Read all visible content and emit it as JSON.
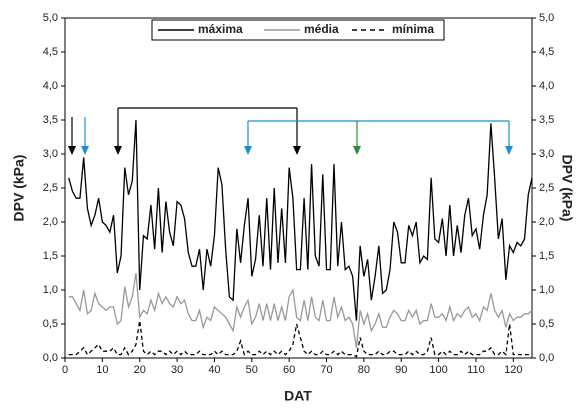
{
  "chart_data": {
    "type": "line",
    "xlabel": "DAT",
    "ylabel": "DPV (kPa)",
    "y2label": "DPV (kPa)",
    "x": [
      1,
      2,
      3,
      4,
      5,
      6,
      7,
      8,
      9,
      10,
      11,
      12,
      13,
      14,
      15,
      16,
      17,
      18,
      19,
      20,
      21,
      22,
      23,
      24,
      25,
      26,
      27,
      28,
      29,
      30,
      31,
      32,
      33,
      34,
      35,
      36,
      37,
      38,
      39,
      40,
      41,
      42,
      43,
      44,
      45,
      46,
      47,
      48,
      49,
      50,
      51,
      52,
      53,
      54,
      55,
      56,
      57,
      58,
      59,
      60,
      61,
      62,
      63,
      64,
      65,
      66,
      67,
      68,
      69,
      70,
      71,
      72,
      73,
      74,
      75,
      76,
      77,
      78,
      79,
      80,
      81,
      82,
      83,
      84,
      85,
      86,
      87,
      88,
      89,
      90,
      91,
      92,
      93,
      94,
      95,
      96,
      97,
      98,
      99,
      100,
      101,
      102,
      103,
      104,
      105,
      106,
      107,
      108,
      109,
      110,
      111,
      112,
      113,
      114,
      115,
      116,
      117,
      118,
      119,
      120,
      121,
      122,
      123,
      124,
      125
    ],
    "series": [
      {
        "name": "máxima",
        "color": "#000000",
        "line_style": "solid",
        "values": [
          2.65,
          2.45,
          2.35,
          2.35,
          2.95,
          2.2,
          1.95,
          2.1,
          2.35,
          2.0,
          1.95,
          1.85,
          2.1,
          1.25,
          1.5,
          2.8,
          2.4,
          2.6,
          3.5,
          1.0,
          1.8,
          1.75,
          2.25,
          1.6,
          2.5,
          1.55,
          2.3,
          1.85,
          1.65,
          2.3,
          2.25,
          2.05,
          1.55,
          1.35,
          1.35,
          1.6,
          1.0,
          1.6,
          1.35,
          1.8,
          2.8,
          2.55,
          1.6,
          0.9,
          0.85,
          1.9,
          1.4,
          1.95,
          2.35,
          1.2,
          1.45,
          2.1,
          1.35,
          2.35,
          1.3,
          2.5,
          1.4,
          2.2,
          1.4,
          2.8,
          2.35,
          1.3,
          1.3,
          2.35,
          1.3,
          2.85,
          1.5,
          1.35,
          2.7,
          1.3,
          1.3,
          2.85,
          1.35,
          2.0,
          1.3,
          1.35,
          1.2,
          0.55,
          1.65,
          1.2,
          1.45,
          0.85,
          1.2,
          1.65,
          0.95,
          1.0,
          1.3,
          2.0,
          1.85,
          1.4,
          1.4,
          1.95,
          1.8,
          2.0,
          1.4,
          1.5,
          1.45,
          2.65,
          1.75,
          1.7,
          2.05,
          1.5,
          2.25,
          1.5,
          1.95,
          1.55,
          2.1,
          2.35,
          1.8,
          1.9,
          1.6,
          2.1,
          2.4,
          3.45,
          2.65,
          1.75,
          2.05,
          1.15,
          1.65,
          1.55,
          1.7,
          1.65,
          1.75,
          2.4,
          2.65
        ]
      },
      {
        "name": "média",
        "color": "#999999",
        "line_style": "solid",
        "values": [
          0.9,
          0.9,
          0.8,
          0.7,
          1.0,
          0.65,
          0.7,
          0.95,
          0.8,
          0.75,
          0.7,
          0.75,
          0.75,
          0.5,
          0.55,
          1.05,
          0.75,
          0.9,
          1.25,
          0.6,
          0.7,
          0.65,
          0.85,
          0.7,
          0.95,
          0.8,
          0.9,
          0.8,
          0.75,
          0.9,
          0.8,
          0.85,
          0.65,
          0.55,
          0.55,
          0.7,
          0.45,
          0.6,
          0.55,
          0.75,
          0.7,
          0.65,
          0.6,
          0.5,
          0.4,
          0.75,
          0.6,
          0.75,
          0.85,
          0.5,
          0.6,
          0.8,
          0.55,
          0.8,
          0.55,
          0.8,
          0.55,
          0.75,
          0.55,
          0.9,
          1.0,
          0.6,
          0.55,
          0.85,
          0.55,
          0.9,
          0.6,
          0.55,
          0.85,
          0.55,
          0.55,
          0.9,
          0.6,
          0.75,
          0.55,
          0.6,
          0.5,
          0.15,
          0.7,
          0.5,
          0.65,
          0.4,
          0.5,
          0.65,
          0.45,
          0.45,
          0.6,
          0.7,
          0.65,
          0.55,
          0.55,
          0.7,
          0.6,
          0.7,
          0.5,
          0.55,
          0.55,
          0.8,
          0.6,
          0.6,
          0.65,
          0.55,
          0.75,
          0.55,
          0.65,
          0.6,
          0.7,
          0.75,
          0.6,
          0.65,
          0.55,
          0.75,
          0.7,
          0.95,
          0.7,
          0.6,
          0.7,
          0.45,
          0.65,
          0.55,
          0.6,
          0.6,
          0.65,
          0.65,
          0.7
        ]
      },
      {
        "name": "mínima",
        "color": "#000000",
        "line_style": "dashed",
        "values": [
          0.05,
          0.05,
          0.05,
          0.1,
          0.15,
          0.05,
          0.1,
          0.15,
          0.2,
          0.1,
          0.1,
          0.1,
          0.15,
          0.05,
          0.05,
          0.15,
          0.05,
          0.1,
          0.2,
          0.55,
          0.1,
          0.05,
          0.1,
          0.05,
          0.1,
          0.1,
          0.05,
          0.1,
          0.05,
          0.1,
          0.05,
          0.1,
          0.05,
          0.05,
          0.05,
          0.1,
          0.05,
          0.05,
          0.05,
          0.1,
          0.05,
          0.1,
          0.05,
          0.05,
          0.05,
          0.1,
          0.25,
          0.05,
          0.1,
          0.05,
          0.05,
          0.1,
          0.05,
          0.1,
          0.05,
          0.1,
          0.05,
          0.1,
          0.05,
          0.1,
          0.2,
          0.5,
          0.3,
          0.1,
          0.05,
          0.1,
          0.05,
          0.05,
          0.1,
          0.05,
          0.05,
          0.1,
          0.05,
          0.1,
          0.05,
          0.05,
          0.05,
          0.02,
          0.3,
          0.1,
          0.05,
          0.05,
          0.05,
          0.1,
          0.05,
          0.05,
          0.1,
          0.1,
          0.05,
          0.05,
          0.05,
          0.1,
          0.05,
          0.1,
          0.05,
          0.05,
          0.1,
          0.3,
          0.05,
          0.05,
          0.1,
          0.05,
          0.1,
          0.05,
          0.05,
          0.1,
          0.05,
          0.1,
          0.05,
          0.05,
          0.05,
          0.1,
          0.1,
          0.15,
          0.05,
          0.05,
          0.1,
          0.05,
          0.5,
          0.05,
          0.05,
          0.05,
          0.05,
          0.05,
          0.05
        ]
      }
    ],
    "xlim": [
      0,
      125
    ],
    "xticks": [
      0,
      10,
      20,
      30,
      40,
      50,
      60,
      70,
      80,
      90,
      100,
      110,
      120
    ],
    "ylim": [
      0,
      5
    ],
    "yticks": [
      {
        "value": 0,
        "label": "0,0"
      },
      {
        "value": 0.5,
        "label": "0,5"
      },
      {
        "value": 1,
        "label": "1,0"
      },
      {
        "value": 1.5,
        "label": "1,5"
      },
      {
        "value": 2,
        "label": "2,0"
      },
      {
        "value": 2.5,
        "label": "2,5"
      },
      {
        "value": 3,
        "label": "3,0"
      },
      {
        "value": 3.5,
        "label": "3,5"
      },
      {
        "value": 4,
        "label": "4,0"
      },
      {
        "value": 4.5,
        "label": "4,5"
      },
      {
        "value": 5,
        "label": "5,0"
      }
    ],
    "y2lim": [
      0,
      5
    ],
    "y2ticks": [
      {
        "value": 0,
        "label": "0,0"
      },
      {
        "value": 0.5,
        "label": "0,5"
      },
      {
        "value": 1,
        "label": "1,0"
      },
      {
        "value": 1.5,
        "label": "1,5"
      },
      {
        "value": 2,
        "label": "2,0"
      },
      {
        "value": 2.5,
        "label": "2,5"
      },
      {
        "value": 3,
        "label": "3,0"
      },
      {
        "value": 3.5,
        "label": "3,5"
      },
      {
        "value": 4,
        "label": "4,0"
      },
      {
        "value": 4.5,
        "label": "4,5"
      },
      {
        "value": 5,
        "label": "5,0"
      }
    ],
    "grid": false,
    "legend": "top"
  }
}
